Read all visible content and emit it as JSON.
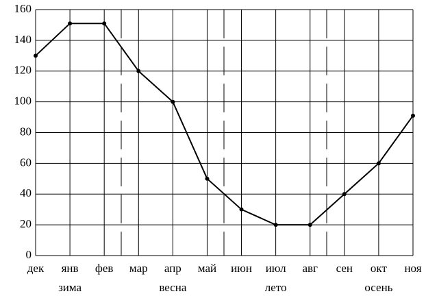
{
  "chart_data": {
    "type": "line",
    "categories": [
      "дек",
      "янв",
      "фев",
      "мар",
      "апр",
      "май",
      "июн",
      "июл",
      "авг",
      "сен",
      "окт",
      "ноя"
    ],
    "series": [
      {
        "color": "#000000",
        "values": [
          130,
          151,
          151,
          120,
          100,
          50,
          30,
          20,
          20,
          40,
          60,
          91
        ]
      }
    ],
    "season_labels": [
      "зима",
      "весна",
      "лето",
      "осень"
    ],
    "ylim": [
      0,
      160
    ],
    "yticks": [
      0,
      20,
      40,
      60,
      80,
      100,
      120,
      140,
      160
    ],
    "grid": true
  }
}
